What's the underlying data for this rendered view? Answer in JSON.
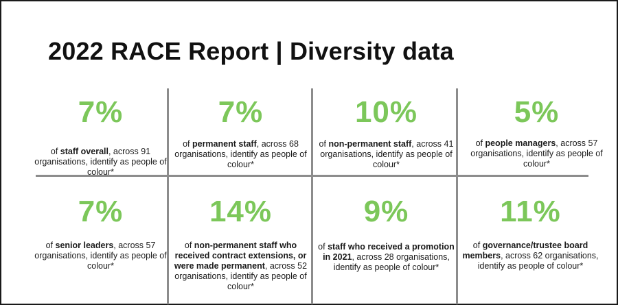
{
  "title": "2022 RACE Report | Diversity data",
  "accent_color": "#7cc75a",
  "stats": [
    {
      "value": "7%",
      "pre": "of ",
      "bold": "staff overall",
      "post": ", across 91 organisations, identify as people of colour*"
    },
    {
      "value": "7%",
      "pre": "of ",
      "bold": "permanent staff",
      "post": ", across 68 organisations, identify as people of colour*"
    },
    {
      "value": "10%",
      "pre": "of ",
      "bold": "non-permanent staff",
      "post": ", across 41 organisations, identify as people of colour*"
    },
    {
      "value": "5%",
      "pre": "of ",
      "bold": "people managers",
      "post": ", across 57 organisations, identify as people of colour*"
    },
    {
      "value": "7%",
      "pre": "of ",
      "bold": "senior leaders",
      "post": ", across 57 organisations, identify as people of colour*"
    },
    {
      "value": "14%",
      "pre": "of ",
      "bold": "non-permanent staff who received contract extensions, or were made permanent",
      "post": ", across 52 organisations, identify as people of colour*"
    },
    {
      "value": "9%",
      "pre": "of ",
      "bold": "staff who received a promotion in 2021",
      "post": ", across 28 organisations, identify as people of colour*"
    },
    {
      "value": "11%",
      "pre": "of ",
      "bold": "governance/trustee board members",
      "post": ", across 62 organisations, identify as people of colour*"
    }
  ]
}
